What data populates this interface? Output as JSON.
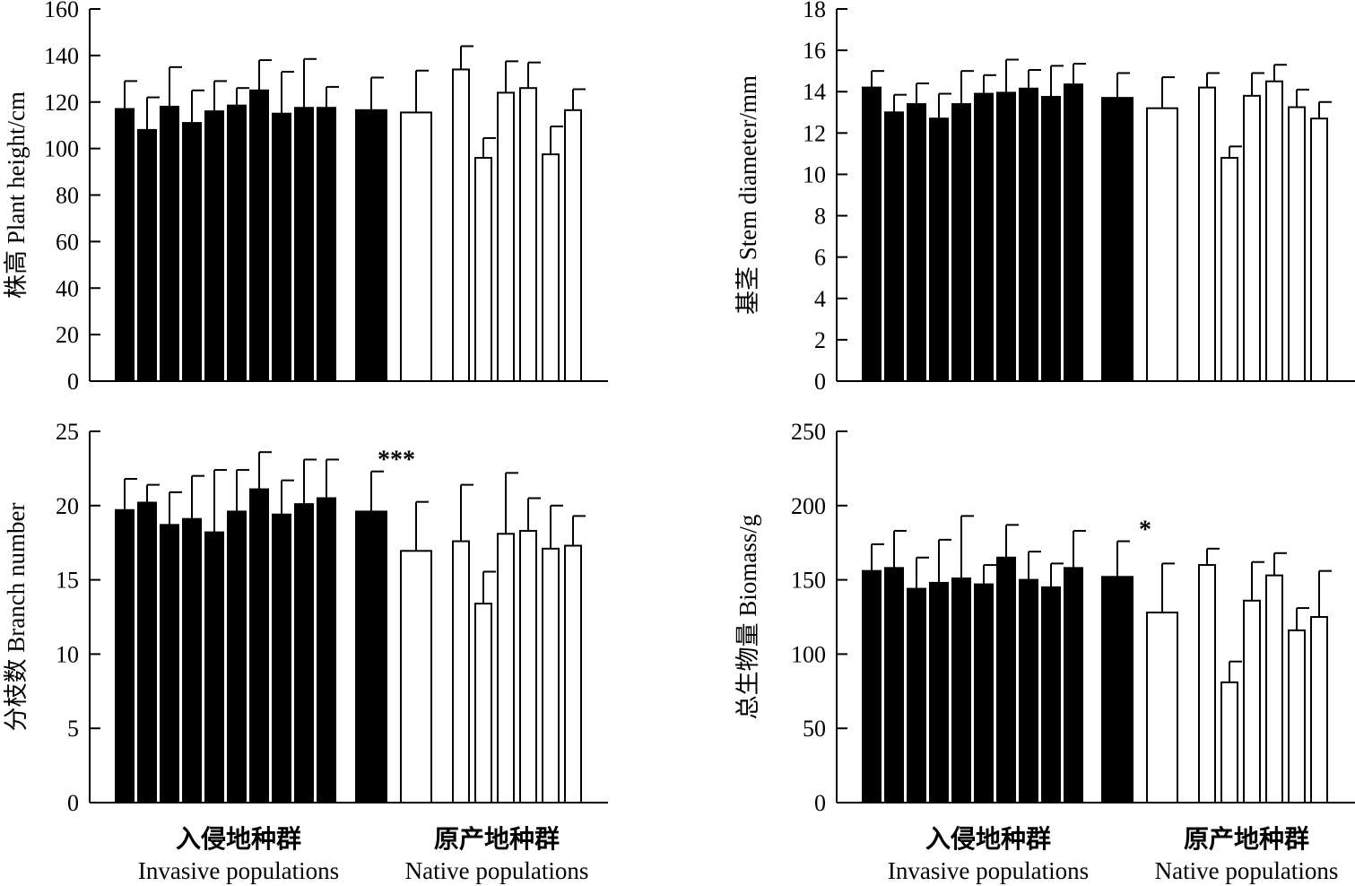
{
  "chart_data": [
    {
      "type": "bar",
      "ylabel": "株高 Plant height/cm",
      "ylim": [
        0,
        160
      ],
      "yticks": [
        0,
        20,
        40,
        60,
        80,
        100,
        120,
        140,
        160
      ],
      "values": [
        117,
        108,
        118,
        111,
        116,
        118.5,
        125,
        115,
        117.5,
        117.5,
        116.5,
        115.5,
        134,
        96,
        124,
        126,
        97.5,
        116.5
      ],
      "errors": [
        12,
        14,
        17,
        14,
        13,
        7.5,
        13,
        18,
        21,
        9,
        14,
        18,
        10,
        8.5,
        13.5,
        11,
        12,
        9
      ],
      "fill": [
        "black",
        "black",
        "black",
        "black",
        "black",
        "black",
        "black",
        "black",
        "black",
        "black",
        "black",
        "white",
        "white",
        "white",
        "white",
        "white",
        "white",
        "white"
      ],
      "significance": "",
      "group_labels": []
    },
    {
      "type": "bar",
      "ylabel": "基茎 Stem diameter/mm",
      "ylim": [
        0,
        18
      ],
      "yticks": [
        0,
        2,
        4,
        6,
        8,
        10,
        12,
        14,
        16,
        18
      ],
      "values": [
        14.2,
        13.0,
        13.4,
        12.7,
        13.4,
        13.9,
        13.95,
        14.15,
        13.75,
        14.35,
        13.7,
        13.2,
        14.2,
        10.8,
        13.8,
        14.5,
        13.25,
        12.7
      ],
      "errors": [
        0.8,
        0.85,
        1.0,
        1.2,
        1.6,
        0.9,
        1.6,
        0.9,
        1.5,
        1.0,
        1.2,
        1.5,
        0.7,
        0.55,
        1.1,
        0.8,
        0.85,
        0.8
      ],
      "fill": [
        "black",
        "black",
        "black",
        "black",
        "black",
        "black",
        "black",
        "black",
        "black",
        "black",
        "black",
        "white",
        "white",
        "white",
        "white",
        "white",
        "white",
        "white"
      ],
      "significance": "",
      "group_labels": []
    },
    {
      "type": "bar",
      "ylabel": "分枝数 Branch number",
      "ylim": [
        0,
        25
      ],
      "yticks": [
        0,
        5,
        10,
        15,
        20,
        25
      ],
      "values": [
        19.7,
        20.2,
        18.7,
        19.1,
        18.2,
        19.6,
        21.1,
        19.4,
        20.1,
        20.5,
        19.6,
        16.95,
        17.6,
        13.4,
        18.1,
        18.3,
        17.1,
        17.3
      ],
      "errors": [
        2.1,
        1.2,
        2.2,
        2.9,
        4.2,
        2.8,
        2.5,
        2.3,
        3.0,
        2.6,
        2.7,
        3.3,
        3.8,
        2.15,
        4.1,
        2.2,
        2.9,
        2.0
      ],
      "fill": [
        "black",
        "black",
        "black",
        "black",
        "black",
        "black",
        "black",
        "black",
        "black",
        "black",
        "black",
        "white",
        "white",
        "white",
        "white",
        "white",
        "white",
        "white"
      ],
      "significance": "***",
      "group_labels": [
        {
          "cn": "入侵地种群",
          "en": "Invasive populations"
        },
        {
          "cn": "原产地种群",
          "en": "Native populations"
        }
      ]
    },
    {
      "type": "bar",
      "ylabel": "总生物量 Biomass/g",
      "ylim": [
        0,
        250
      ],
      "yticks": [
        0,
        50,
        100,
        150,
        200,
        250
      ],
      "values": [
        156,
        158,
        144,
        148,
        151,
        147,
        165,
        150,
        145,
        158,
        152,
        128,
        160,
        81,
        136,
        153,
        116,
        125
      ],
      "errors": [
        18,
        25,
        21,
        29,
        42,
        13,
        22,
        19,
        16,
        25,
        24,
        33,
        11,
        14,
        26,
        15,
        15,
        31
      ],
      "fill": [
        "black",
        "black",
        "black",
        "black",
        "black",
        "black",
        "black",
        "black",
        "black",
        "black",
        "black",
        "white",
        "white",
        "white",
        "white",
        "white",
        "white",
        "white"
      ],
      "significance": "*",
      "group_labels": [
        {
          "cn": "入侵地种群",
          "en": "Invasive populations"
        },
        {
          "cn": "原产地种群",
          "en": "Native populations"
        }
      ]
    }
  ]
}
